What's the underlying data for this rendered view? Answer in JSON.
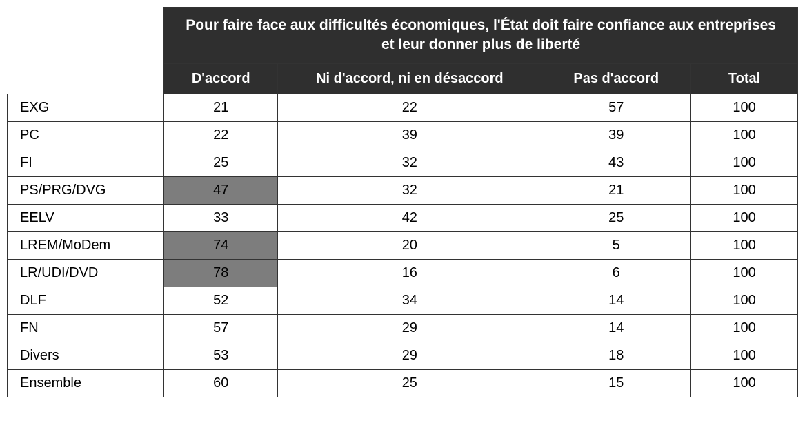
{
  "table": {
    "type": "table",
    "title": "Pour faire face aux difficultés économiques, l'État doit faire confiance aux entreprises et leur donner plus de liberté",
    "columns": {
      "agree": "D'accord",
      "neutral": "Ni d'accord, ni en désaccord",
      "disagree": "Pas d'accord",
      "total": "Total"
    },
    "rows": [
      {
        "label": "EXG",
        "agree": "21",
        "neutral": "22",
        "disagree": "57",
        "total": "100",
        "highlight_agree": false
      },
      {
        "label": "PC",
        "agree": "22",
        "neutral": "39",
        "disagree": "39",
        "total": "100",
        "highlight_agree": false
      },
      {
        "label": "FI",
        "agree": "25",
        "neutral": "32",
        "disagree": "43",
        "total": "100",
        "highlight_agree": false
      },
      {
        "label": "PS/PRG/DVG",
        "agree": "47",
        "neutral": "32",
        "disagree": "21",
        "total": "100",
        "highlight_agree": true
      },
      {
        "label": "EELV",
        "agree": "33",
        "neutral": "42",
        "disagree": "25",
        "total": "100",
        "highlight_agree": false
      },
      {
        "label": "LREM/MoDem",
        "agree": "74",
        "neutral": "20",
        "disagree": "5",
        "total": "100",
        "highlight_agree": true
      },
      {
        "label": "LR/UDI/DVD",
        "agree": "78",
        "neutral": "16",
        "disagree": "6",
        "total": "100",
        "highlight_agree": true
      },
      {
        "label": "DLF",
        "agree": "52",
        "neutral": "34",
        "disagree": "14",
        "total": "100",
        "highlight_agree": false
      },
      {
        "label": "FN",
        "agree": "57",
        "neutral": "29",
        "disagree": "14",
        "total": "100",
        "highlight_agree": false
      },
      {
        "label": "Divers",
        "agree": "53",
        "neutral": "29",
        "disagree": "18",
        "total": "100",
        "highlight_agree": false
      },
      {
        "label": "Ensemble",
        "agree": "60",
        "neutral": "25",
        "disagree": "15",
        "total": "100",
        "highlight_agree": false
      }
    ],
    "styling": {
      "header_bg": "#2f2f2f",
      "header_text": "#ffffff",
      "cell_border": "#333333",
      "highlight_bg": "#7d7d7d",
      "body_bg": "#ffffff",
      "font_family": "Segoe UI, Arial, sans-serif",
      "title_fontsize": 21,
      "body_fontsize": 20,
      "column_widths": {
        "rowlabel": 220,
        "agree": 160,
        "neutral": 370,
        "disagree": 210,
        "total": 150
      }
    }
  }
}
